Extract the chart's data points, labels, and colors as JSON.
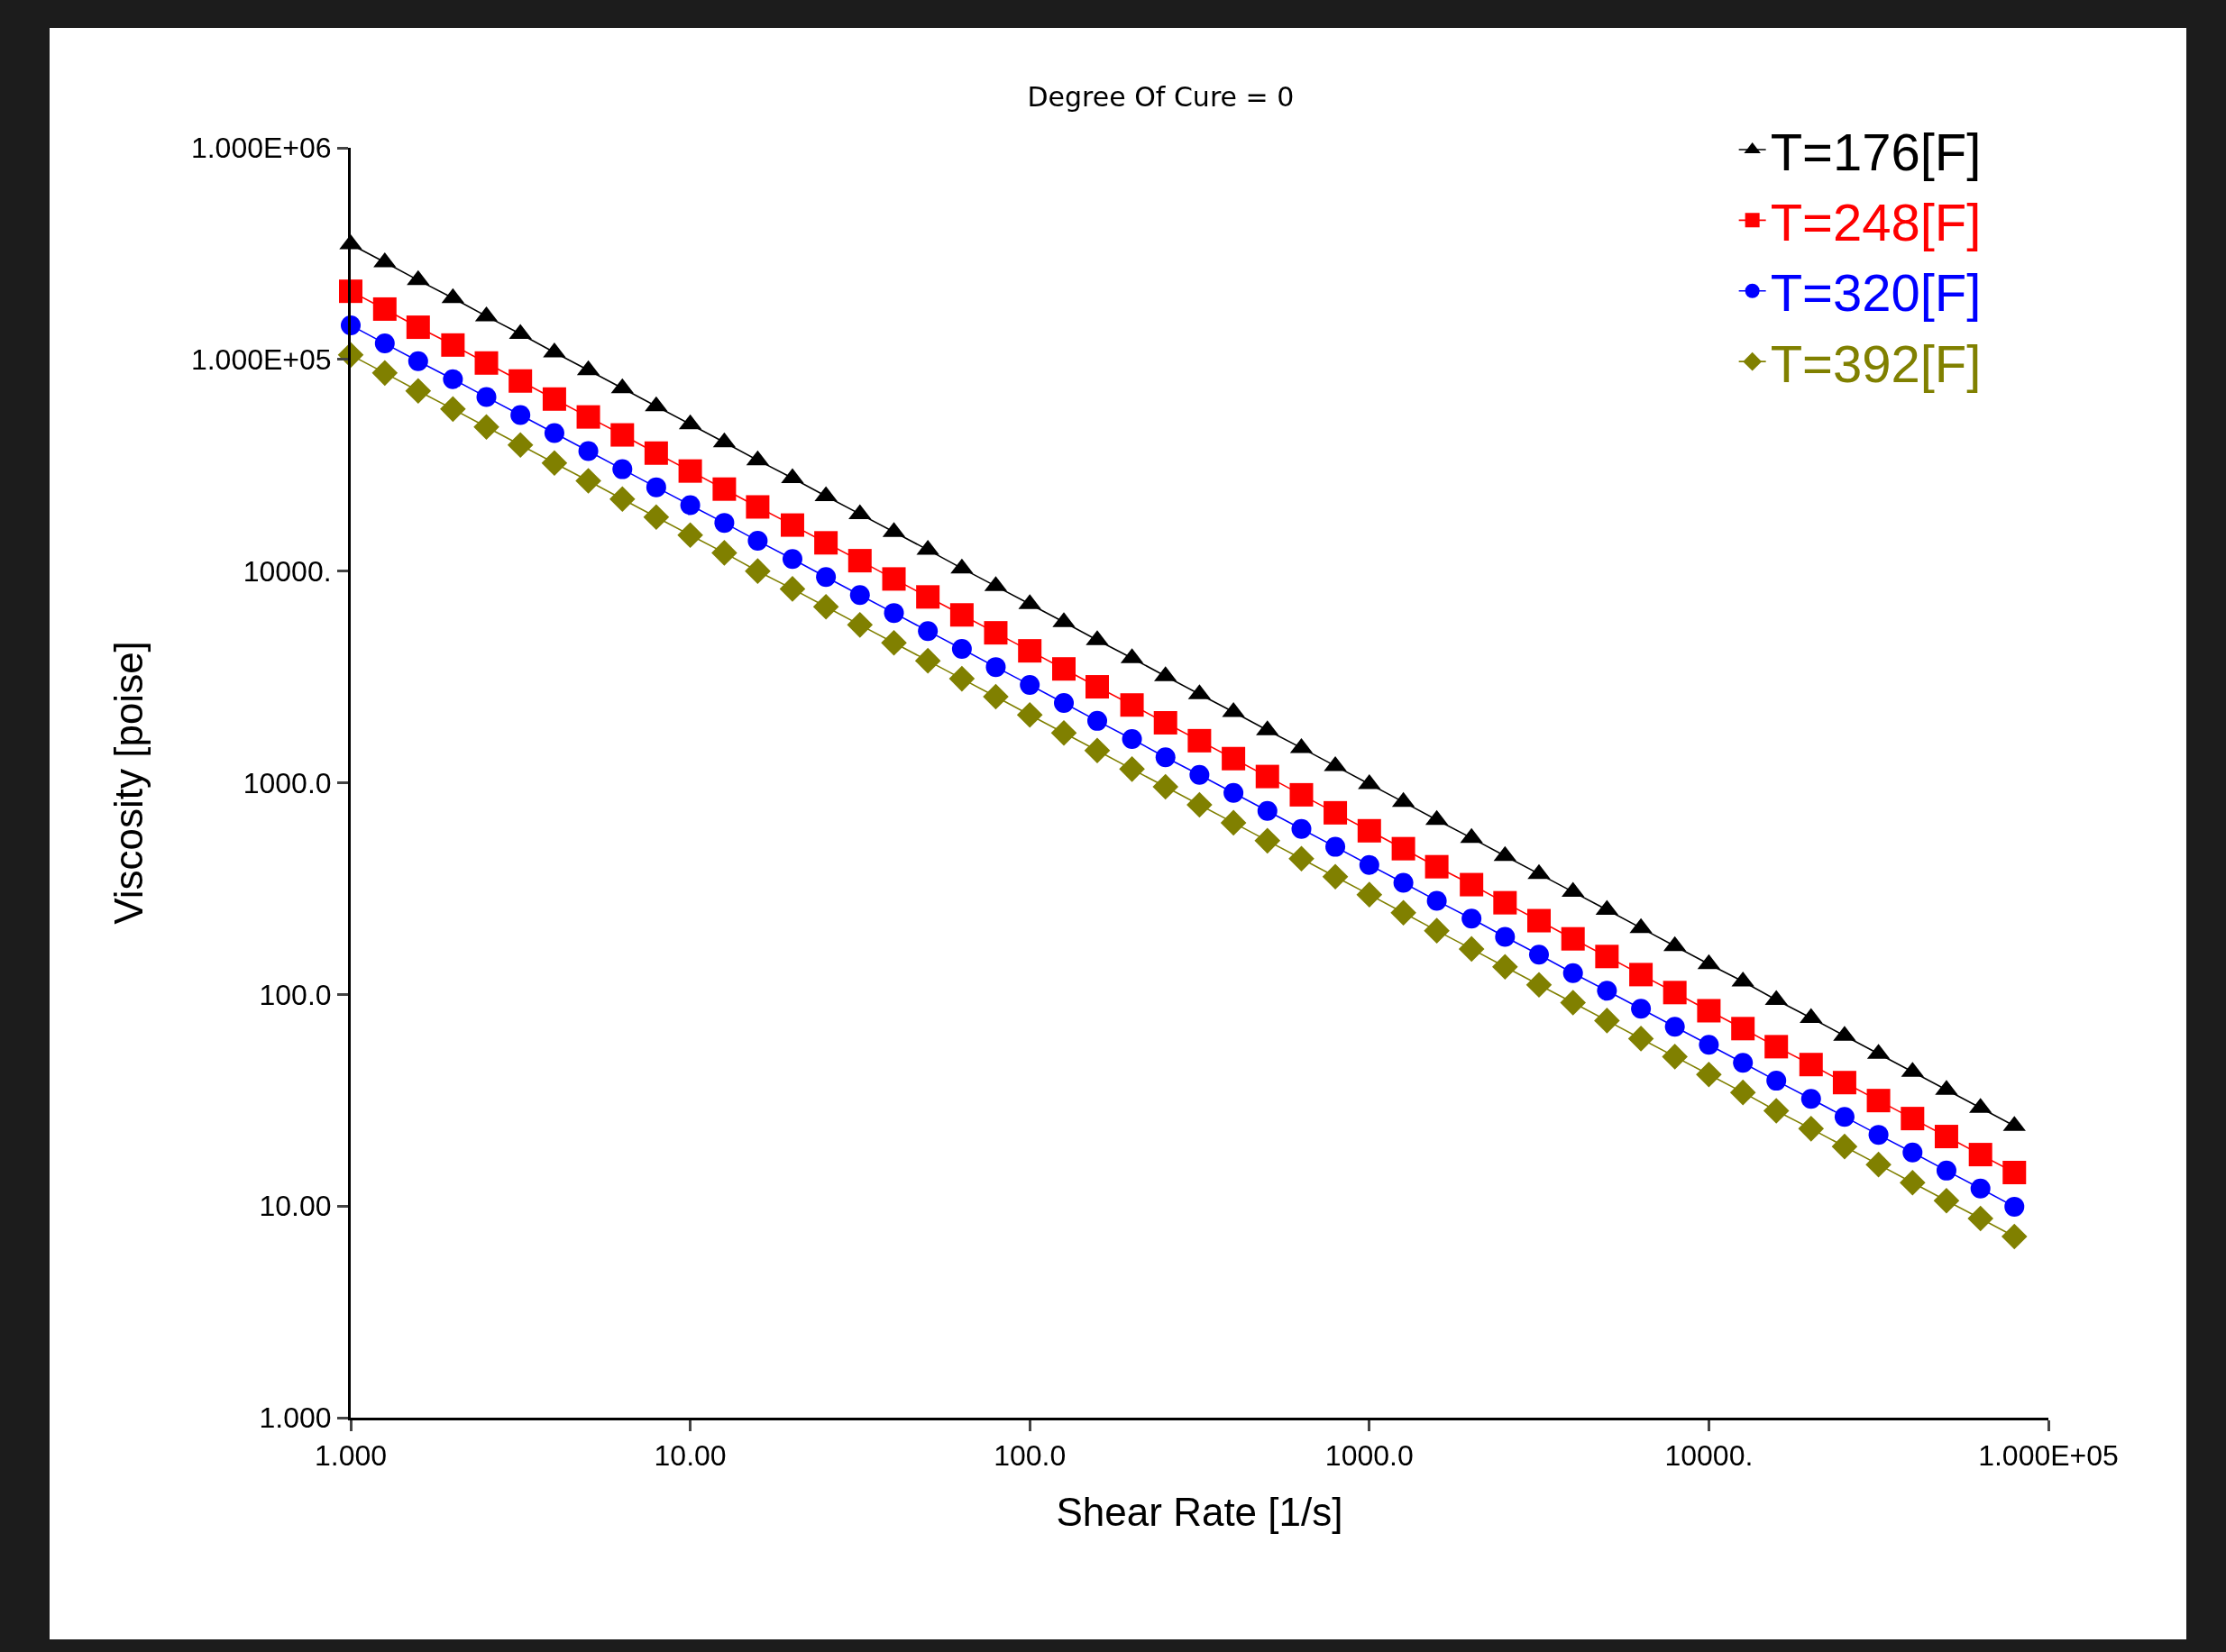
{
  "chart_data": {
    "type": "line",
    "title": "Degree Of Cure = 0",
    "xlabel": "Shear Rate [1/s]",
    "ylabel": "Viscosity [poise]",
    "log": "xy",
    "grid": false,
    "legend": "top right",
    "line_style": "solid",
    "x": [
      1,
      1.26,
      1.58,
      2,
      2.51,
      3.16,
      3.98,
      5.01,
      6.31,
      7.94,
      10,
      12.6,
      15.8,
      20,
      25.1,
      31.6,
      39.8,
      50.1,
      63.1,
      79.4,
      100,
      126,
      158,
      200,
      251,
      316,
      398,
      501,
      631,
      794,
      1000,
      1260,
      1580,
      2000,
      2510,
      3160,
      3980,
      5010,
      6310,
      7940,
      10000,
      12600,
      15800,
      20000,
      25100,
      31600,
      39800,
      50100,
      63100,
      79400
    ],
    "xlim": [
      1,
      100000
    ],
    "xticks": [
      {
        "value": 1,
        "label": "1.000"
      },
      {
        "value": 10,
        "label": "10.00"
      },
      {
        "value": 100,
        "label": "100.0"
      },
      {
        "value": 1000,
        "label": "1000.0"
      },
      {
        "value": 10000,
        "label": "10000."
      },
      {
        "value": 100000,
        "label": "1.000E+05"
      }
    ],
    "ylim": [
      1,
      1000000
    ],
    "yticks": [
      {
        "value": 1,
        "label": "1.000"
      },
      {
        "value": 10,
        "label": "10.00"
      },
      {
        "value": 100,
        "label": "100.0"
      },
      {
        "value": 1000,
        "label": "1000.0"
      },
      {
        "value": 10000,
        "label": "10000."
      },
      {
        "value": 100000,
        "label": "1.000E+05"
      },
      {
        "value": 1000000,
        "label": "1.000E+06"
      }
    ],
    "series": [
      {
        "name": "T=176[F]",
        "color": "#000000",
        "marker": "triangle",
        "values": [
          350000,
          288000,
          237000,
          195000,
          160000,
          132000,
          108000,
          88900,
          73100,
          60100,
          49400,
          40600,
          33400,
          27500,
          22600,
          18600,
          15300,
          12600,
          10300,
          8490,
          6980,
          5740,
          4720,
          3880,
          3190,
          2620,
          2160,
          1770,
          1460,
          1200,
          986,
          811,
          667,
          548,
          451,
          371,
          305,
          251,
          206,
          169,
          139,
          115,
          94.2,
          77.4,
          63.7,
          52.4,
          43.1,
          35.4,
          29.1,
          23.9
        ]
      },
      {
        "name": "T=248[F]",
        "color": "#ff0000",
        "marker": "square",
        "values": [
          210000,
          173000,
          142000,
          117000,
          96200,
          79100,
          65000,
          53500,
          44000,
          36100,
          29700,
          24400,
          20100,
          16500,
          13600,
          11200,
          9180,
          7550,
          6210,
          5110,
          4200,
          3450,
          2840,
          2330,
          1920,
          1580,
          1300,
          1070,
          877,
          721,
          593,
          488,
          401,
          330,
          271,
          223,
          183,
          151,
          124,
          102,
          83.7,
          68.9,
          56.6,
          46.6,
          38.3,
          31.5,
          25.9,
          21.3,
          17.5,
          14.4
        ]
      },
      {
        "name": "T=320[F]",
        "color": "#0000ff",
        "marker": "circle",
        "values": [
          145000,
          119000,
          98200,
          80700,
          66400,
          54600,
          44900,
          36900,
          30300,
          24900,
          20500,
          16900,
          13900,
          11400,
          9380,
          7710,
          6340,
          5210,
          4290,
          3520,
          2900,
          2380,
          1960,
          1610,
          1320,
          1090,
          895,
          736,
          605,
          498,
          409,
          337,
          277,
          228,
          187,
          154,
          126,
          104,
          85.5,
          70.3,
          57.8,
          47.5,
          39.1,
          32.1,
          26.4,
          21.7,
          17.9,
          14.7,
          12.1,
          9.93
        ]
      },
      {
        "name": "T=392[F]",
        "color": "#808000",
        "marker": "diamond",
        "values": [
          105000,
          86300,
          71000,
          58300,
          48000,
          39400,
          32400,
          26700,
          21900,
          18000,
          14800,
          12200,
          10000,
          8240,
          6780,
          5570,
          4580,
          3770,
          3100,
          2550,
          2090,
          1720,
          1420,
          1160,
          957,
          787,
          647,
          532,
          438,
          360,
          296,
          243,
          200,
          164,
          135,
          111,
          91.4,
          75.2,
          61.8,
          50.8,
          41.8,
          34.4,
          28.2,
          23.2,
          19.1,
          15.7,
          12.9,
          10.6,
          8.73,
          7.18
        ]
      }
    ]
  }
}
